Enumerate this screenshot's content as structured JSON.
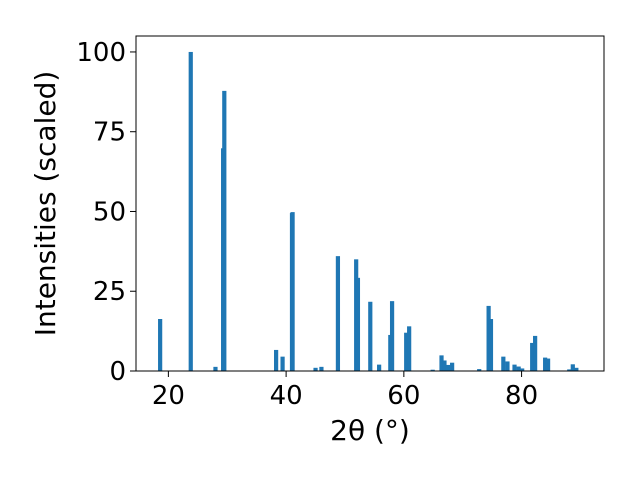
{
  "chart_data": {
    "type": "bar",
    "xlabel": "2θ (°)",
    "ylabel": "Intensities (scaled)",
    "xlim": [
      14.5,
      94
    ],
    "ylim": [
      0,
      105
    ],
    "xticks": [
      20,
      40,
      60,
      80
    ],
    "yticks": [
      0,
      25,
      50,
      75,
      100
    ],
    "xtick_labels": [
      "20",
      "40",
      "60",
      "80"
    ],
    "ytick_labels": [
      "0",
      "25",
      "50",
      "75",
      "100"
    ],
    "grid": false,
    "bar_color": "#1f77b4",
    "x": [
      18.6,
      23.8,
      28.0,
      29.3,
      29.5,
      38.3,
      39.4,
      41.0,
      41.1,
      45.0,
      46.0,
      48.8,
      51.9,
      52.2,
      54.3,
      55.8,
      57.7,
      58.0,
      60.4,
      60.9,
      64.9,
      66.4,
      66.9,
      67.5,
      68.2,
      72.8,
      74.4,
      74.8,
      76.9,
      77.6,
      78.8,
      79.5,
      80.1,
      81.8,
      82.3,
      84.0,
      84.5,
      88.1,
      88.7,
      89.3
    ],
    "values": [
      16.3,
      100.0,
      1.3,
      69.8,
      87.8,
      6.6,
      4.5,
      49.5,
      49.8,
      1.0,
      1.3,
      36.0,
      35.0,
      29.2,
      21.7,
      2.0,
      11.3,
      21.9,
      12.0,
      14.0,
      0.4,
      4.9,
      3.3,
      1.9,
      2.6,
      0.6,
      20.4,
      16.3,
      4.5,
      3.0,
      2.0,
      1.4,
      0.8,
      8.8,
      11.0,
      4.2,
      3.9,
      0.5,
      2.1,
      1.0
    ]
  }
}
